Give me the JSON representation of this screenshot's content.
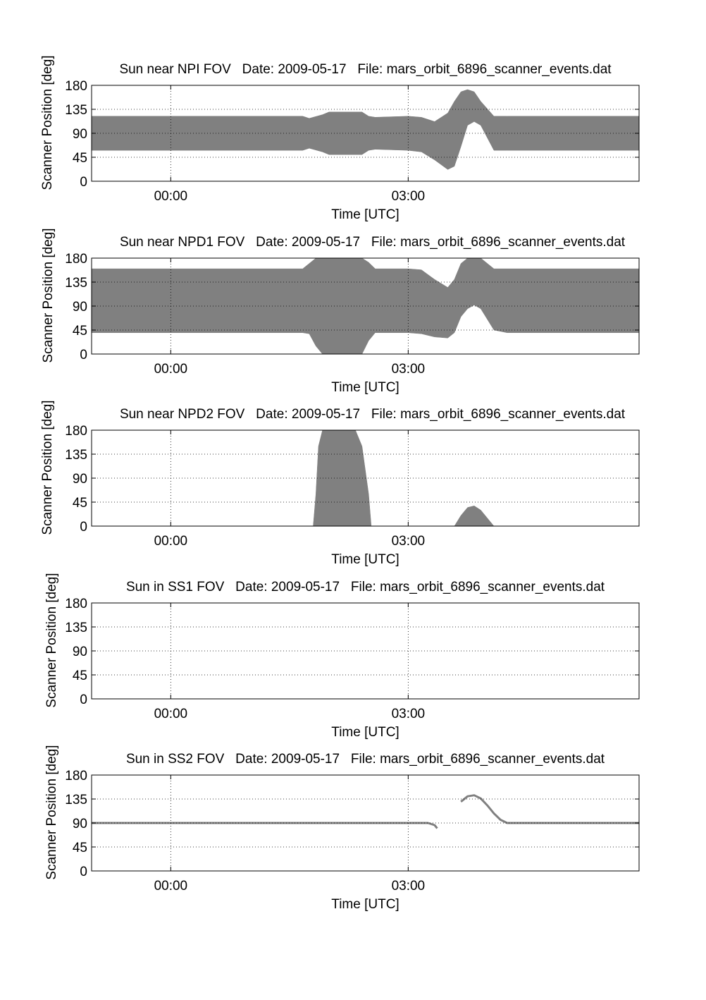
{
  "chart_data": [
    {
      "type": "area",
      "title": "Sun near NPI FOV   Date: 2009-05-17   File: mars_orbit_6896_scanner_events.dat",
      "xlabel": "Time [UTC]",
      "ylabel": "Scanner Position [deg]",
      "ylim": [
        0,
        180
      ],
      "yticks": [
        0,
        45,
        90,
        135,
        180
      ],
      "xlim": [
        "-01:00",
        "05:55"
      ],
      "xtick_labels": [
        "00:00",
        "03:00"
      ],
      "grid": true,
      "fill_color": "#808080",
      "series": [
        {
          "x": [
            "-01:00",
            "01:40",
            "01:45",
            "01:55",
            "02:00",
            "02:25",
            "02:30",
            "02:35",
            "03:00",
            "03:10",
            "03:20",
            "03:30",
            "03:35",
            "03:40",
            "03:45",
            "03:50",
            "03:55",
            "04:05",
            "04:15",
            "05:55"
          ],
          "upper": [
            122,
            122,
            118,
            125,
            130,
            130,
            122,
            120,
            122,
            120,
            112,
            128,
            150,
            168,
            172,
            168,
            150,
            122,
            122,
            122
          ],
          "lower": [
            58,
            58,
            62,
            55,
            50,
            50,
            58,
            60,
            58,
            55,
            40,
            22,
            28,
            65,
            105,
            112,
            105,
            58,
            58,
            58
          ]
        }
      ]
    },
    {
      "type": "area",
      "title": "Sun near NPD1 FOV   Date: 2009-05-17   File: mars_orbit_6896_scanner_events.dat",
      "xlabel": "Time [UTC]",
      "ylabel": "Scanner Position [deg]",
      "ylim": [
        0,
        180
      ],
      "yticks": [
        0,
        45,
        90,
        135,
        180
      ],
      "xlim": [
        "-01:00",
        "05:55"
      ],
      "xtick_labels": [
        "00:00",
        "03:00"
      ],
      "grid": true,
      "fill_color": "#808080",
      "series": [
        {
          "x": [
            "-01:00",
            "01:40",
            "01:45",
            "01:50",
            "01:55",
            "02:00",
            "02:20",
            "02:25",
            "02:30",
            "02:35",
            "03:00",
            "03:10",
            "03:20",
            "03:30",
            "03:35",
            "03:40",
            "03:45",
            "03:50",
            "03:55",
            "04:05",
            "04:15",
            "05:55"
          ],
          "upper": [
            160,
            160,
            170,
            180,
            180,
            180,
            180,
            180,
            172,
            160,
            160,
            158,
            140,
            125,
            140,
            170,
            180,
            180,
            180,
            160,
            160,
            160
          ],
          "lower": [
            40,
            40,
            38,
            15,
            0,
            0,
            0,
            0,
            25,
            40,
            40,
            38,
            32,
            30,
            40,
            70,
            85,
            92,
            85,
            45,
            40,
            40
          ]
        }
      ]
    },
    {
      "type": "area",
      "title": "Sun near NPD2 FOV   Date: 2009-05-17   File: mars_orbit_6896_scanner_events.dat",
      "xlabel": "Time [UTC]",
      "ylabel": "Scanner Position [deg]",
      "ylim": [
        0,
        180
      ],
      "yticks": [
        0,
        45,
        90,
        135,
        180
      ],
      "xlim": [
        "-01:00",
        "05:55"
      ],
      "xtick_labels": [
        "00:00",
        "03:00"
      ],
      "grid": true,
      "fill_color": "#808080",
      "series": [
        {
          "x": [
            "01:48",
            "01:50",
            "01:52",
            "01:55",
            "02:20",
            "02:25",
            "02:30",
            "02:32"
          ],
          "upper": [
            0,
            60,
            150,
            180,
            180,
            150,
            60,
            0
          ],
          "lower": [
            0,
            0,
            0,
            0,
            0,
            0,
            0,
            0
          ]
        },
        {
          "x": [
            "03:35",
            "03:40",
            "03:45",
            "03:50",
            "03:55",
            "04:00",
            "04:05"
          ],
          "upper": [
            0,
            20,
            35,
            38,
            30,
            15,
            0
          ],
          "lower": [
            0,
            0,
            0,
            0,
            0,
            0,
            0
          ]
        }
      ]
    },
    {
      "type": "area",
      "title": "Sun in SS1 FOV   Date: 2009-05-17   File: mars_orbit_6896_scanner_events.dat",
      "xlabel": "Time [UTC]",
      "ylabel": "Scanner Position [deg]",
      "ylim": [
        0,
        180
      ],
      "yticks": [
        0,
        45,
        90,
        135,
        180
      ],
      "xlim": [
        "-01:00",
        "05:55"
      ],
      "xtick_labels": [
        "00:00",
        "03:00"
      ],
      "grid": true,
      "fill_color": "#808080",
      "series": []
    },
    {
      "type": "line",
      "title": "Sun in SS2 FOV   Date: 2009-05-17   File: mars_orbit_6896_scanner_events.dat",
      "xlabel": "Time [UTC]",
      "ylabel": "Scanner Position [deg]",
      "ylim": [
        0,
        180
      ],
      "yticks": [
        0,
        45,
        90,
        135,
        180
      ],
      "xlim": [
        "-01:00",
        "05:55"
      ],
      "xtick_labels": [
        "00:00",
        "03:00"
      ],
      "grid": true,
      "line_color": "#808080",
      "series": [
        {
          "x": [
            "-01:00",
            "03:15",
            "03:20",
            "03:22"
          ],
          "y": [
            90,
            90,
            86,
            80
          ]
        },
        {
          "x": [
            "03:40",
            "03:45",
            "03:50",
            "03:55",
            "04:00",
            "04:05",
            "04:10",
            "04:15",
            "05:55"
          ],
          "y": [
            130,
            140,
            142,
            136,
            123,
            108,
            96,
            90,
            90
          ]
        }
      ]
    }
  ]
}
